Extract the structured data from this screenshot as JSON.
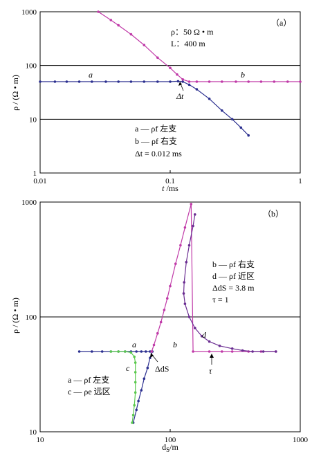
{
  "chart_data": [
    {
      "panel_label": "（a）",
      "type": "line",
      "x_scale": "log",
      "y_scale": "log",
      "xlim": [
        0.01,
        1
      ],
      "ylim": [
        1,
        1000
      ],
      "x_ticks": [
        "0.01",
        "0.1",
        "1"
      ],
      "y_ticks": [
        "1",
        "10",
        "100",
        "1000"
      ],
      "xlabel": "t /ms",
      "ylabel": "ρ / (Ω • m)",
      "grid": "horizontal",
      "series": [
        {
          "name": "a",
          "color": "#2b2f8f",
          "points": [
            [
              0.01,
              50
            ],
            [
              0.013,
              50
            ],
            [
              0.016,
              50
            ],
            [
              0.02,
              50
            ],
            [
              0.025,
              50
            ],
            [
              0.032,
              50
            ],
            [
              0.04,
              50
            ],
            [
              0.05,
              50
            ],
            [
              0.063,
              50
            ],
            [
              0.08,
              50
            ],
            [
              0.1,
              50
            ],
            [
              0.115,
              51
            ],
            [
              0.125,
              50
            ],
            [
              0.14,
              44
            ],
            [
              0.16,
              36
            ],
            [
              0.2,
              24
            ],
            [
              0.25,
              14.5
            ],
            [
              0.3,
              10
            ],
            [
              0.35,
              7
            ],
            [
              0.4,
              5
            ]
          ]
        },
        {
          "name": "b",
          "color": "#c03aa8",
          "points": [
            [
              0.028,
              1000
            ],
            [
              0.035,
              700
            ],
            [
              0.04,
              560
            ],
            [
              0.05,
              380
            ],
            [
              0.063,
              240
            ],
            [
              0.08,
              140
            ],
            [
              0.1,
              90
            ],
            [
              0.113,
              68
            ],
            [
              0.125,
              55
            ],
            [
              0.14,
              50
            ],
            [
              0.16,
              50
            ],
            [
              0.2,
              50
            ],
            [
              0.25,
              50
            ],
            [
              0.32,
              50
            ],
            [
              0.4,
              50
            ],
            [
              0.5,
              50
            ],
            [
              0.63,
              50
            ],
            [
              0.8,
              50
            ],
            [
              1,
              50
            ]
          ]
        }
      ],
      "annotations": {
        "rho_label": "ρ：50 Ω • m",
        "length_label": "L：400 m",
        "curve_a": "a",
        "curve_b": "b",
        "delta": "Δt",
        "legend_a": "a — ρf 左支",
        "legend_b": "b — ρf 右支",
        "legend_dt": "Δt = 0.012  ms"
      }
    },
    {
      "panel_label": "（b）",
      "type": "line",
      "x_scale": "log",
      "y_scale": "log",
      "xlim": [
        10,
        1000
      ],
      "ylim": [
        10,
        1000
      ],
      "x_ticks": [
        "10",
        "100",
        "1000"
      ],
      "y_ticks": [
        "10",
        "100",
        "1000"
      ],
      "xlabel": "dS/m",
      "ylabel": "ρ / (Ω • m)",
      "grid": "horizontal",
      "series": [
        {
          "name": "a",
          "color": "#2b2f8f",
          "points": [
            [
              20,
              50
            ],
            [
              25,
              50
            ],
            [
              30,
              50
            ],
            [
              35,
              50
            ],
            [
              40,
              50
            ],
            [
              45,
              50
            ],
            [
              50,
              50
            ],
            [
              55,
              50
            ],
            [
              60,
              50
            ],
            [
              65,
              50
            ],
            [
              70,
              50
            ],
            [
              73,
              50
            ],
            [
              70,
              44
            ],
            [
              67,
              36
            ],
            [
              63,
              29
            ],
            [
              60,
              23
            ],
            [
              57,
              18.5
            ],
            [
              55,
              15.5
            ],
            [
              52,
              12
            ]
          ]
        },
        {
          "name": "b",
          "color": "#c03aa8",
          "points": [
            [
              72,
              50
            ],
            [
              75,
              57
            ],
            [
              80,
              72
            ],
            [
              85,
              90
            ],
            [
              90,
              115
            ],
            [
              95,
              145
            ],
            [
              100,
              185
            ],
            [
              110,
              290
            ],
            [
              120,
              420
            ],
            [
              130,
              600
            ],
            [
              145,
              960
            ],
            [
              150,
              50
            ],
            [
              200,
              50
            ],
            [
              250,
              50
            ],
            [
              300,
              50
            ],
            [
              400,
              50
            ],
            [
              500,
              50
            ],
            [
              650,
              50
            ]
          ]
        },
        {
          "name": "c",
          "color": "#5bc94e",
          "points": [
            [
              35,
              50
            ],
            [
              40,
              50
            ],
            [
              45,
              50
            ],
            [
              50,
              49
            ],
            [
              53,
              45
            ],
            [
              54,
              40
            ],
            [
              54,
              33
            ],
            [
              54,
              27
            ],
            [
              54,
              22
            ],
            [
              53,
              17
            ],
            [
              52,
              14
            ],
            [
              51,
              12
            ]
          ]
        },
        {
          "name": "d",
          "color": "#6a2c91",
          "points": [
            [
              155,
              780
            ],
            [
              150,
              620
            ],
            [
              140,
              420
            ],
            [
              133,
              300
            ],
            [
              128,
              200
            ],
            [
              127,
              160
            ],
            [
              130,
              130
            ],
            [
              140,
              100
            ],
            [
              155,
              80
            ],
            [
              175,
              68
            ],
            [
              200,
              61
            ],
            [
              240,
              56
            ],
            [
              300,
              53
            ],
            [
              360,
              51
            ],
            [
              430,
              50
            ],
            [
              520,
              50
            ],
            [
              650,
              50
            ]
          ]
        }
      ],
      "annotations": {
        "curve_a": "a",
        "curve_b": "b",
        "curve_c": "c",
        "curve_d": "d",
        "delta": "ΔdS",
        "tau": "τ",
        "legend_b": "b — ρf 右支",
        "legend_d": "d — ρf 近区",
        "legend_ds": "ΔdS = 3.8 m",
        "legend_tau": "τ = 1",
        "legend_a": "a — ρf 左支",
        "legend_c": "c — ρe 远区"
      }
    }
  ]
}
